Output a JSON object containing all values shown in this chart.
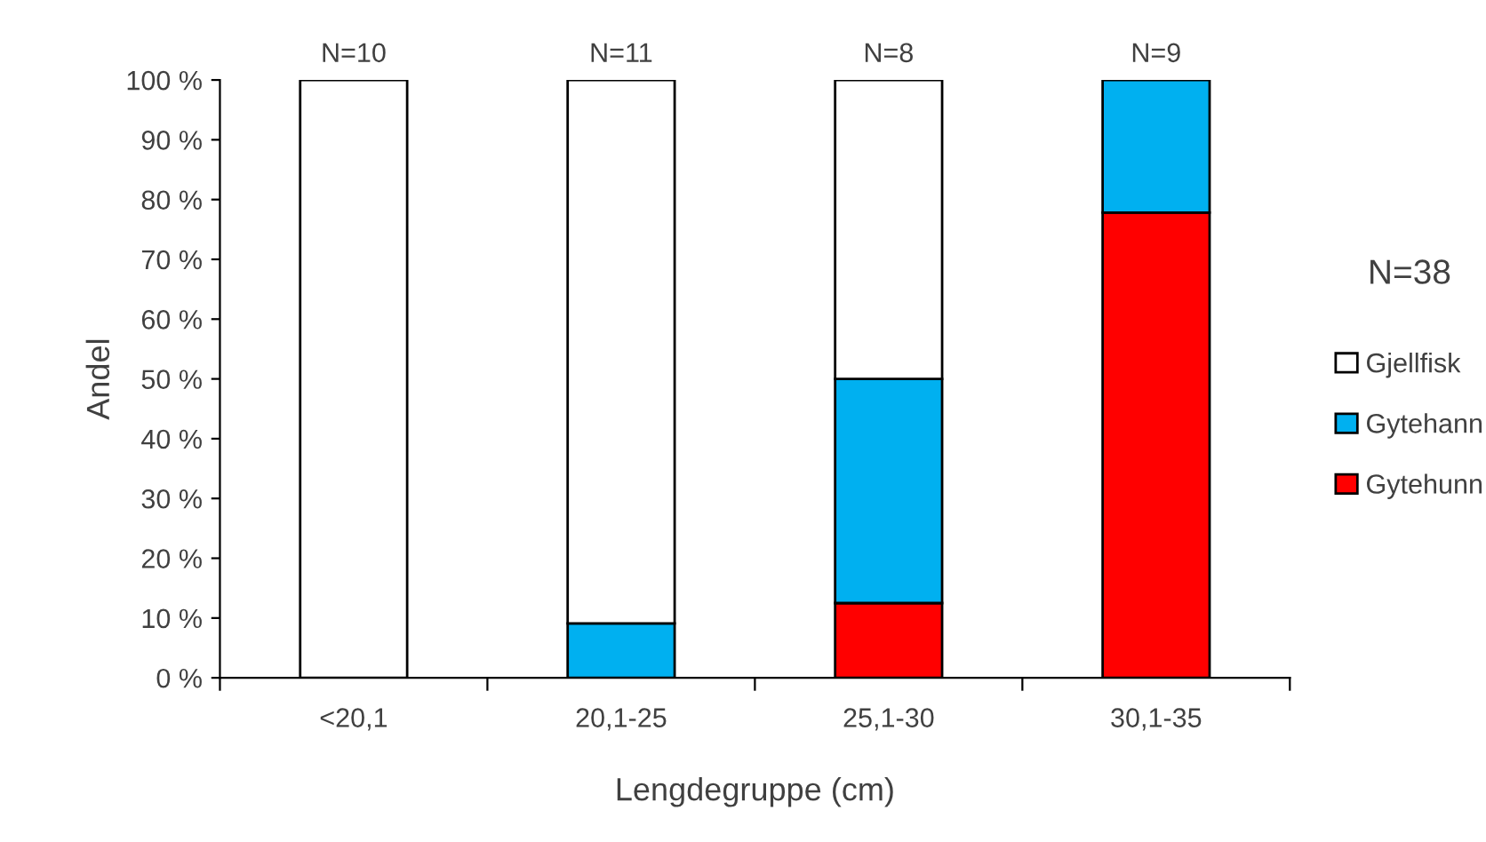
{
  "chart_data": {
    "type": "bar",
    "stacked": true,
    "xlabel": "Lengdegruppe (cm)",
    "ylabel": "Andel",
    "legend_title": "N=38",
    "categories": [
      "<20,1",
      "20,1-25",
      "25,1-30",
      "30,1-35"
    ],
    "series": [
      {
        "name": "Gytehunn",
        "color": "#ff0000",
        "values": [
          0,
          0,
          12.5,
          77.8
        ]
      },
      {
        "name": "Gytehann",
        "color": "#00b0f0",
        "values": [
          0,
          9.1,
          37.5,
          22.2
        ]
      },
      {
        "name": "Gjellfisk",
        "color": "#ffffff",
        "values": [
          100,
          90.9,
          50,
          0
        ]
      }
    ],
    "ylim": [
      0,
      100
    ],
    "yticks": [
      {
        "value": 0,
        "label": "0 %"
      },
      {
        "value": 10,
        "label": "10 %"
      },
      {
        "value": 20,
        "label": "20 %"
      },
      {
        "value": 30,
        "label": "30 %"
      },
      {
        "value": 40,
        "label": "40 %"
      },
      {
        "value": 50,
        "label": "50 %"
      },
      {
        "value": 60,
        "label": "60 %"
      },
      {
        "value": 70,
        "label": "70 %"
      },
      {
        "value": 80,
        "label": "80 %"
      },
      {
        "value": 90,
        "label": "90 %"
      },
      {
        "value": 100,
        "label": "100 %"
      }
    ],
    "annotations": [
      {
        "text": "N=10",
        "x": "<20,1",
        "y": 100
      },
      {
        "text": "N=11",
        "x": "20,1-25",
        "y": 100
      },
      {
        "text": "N=8",
        "x": "25,1-30",
        "y": 100
      },
      {
        "text": "N=9",
        "x": "30,1-35",
        "y": 100
      }
    ],
    "legend": "right",
    "grid": false
  }
}
